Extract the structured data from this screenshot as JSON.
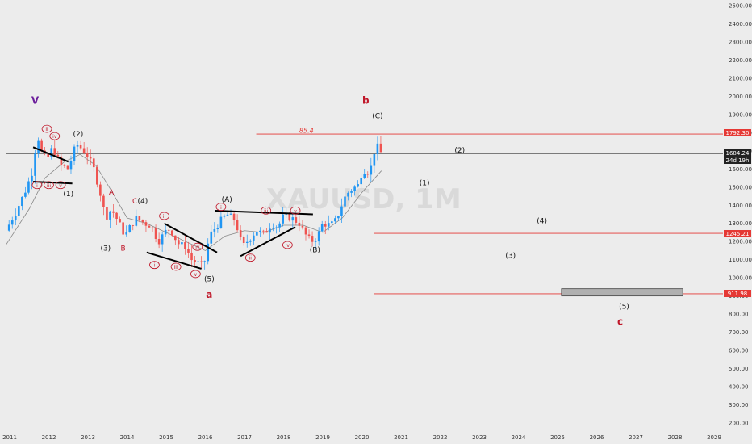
{
  "chart_data": {
    "type": "candlestick",
    "title": "",
    "watermark": "XAUUSD, 1M",
    "y_axis": {
      "ticks": [
        "2500.00",
        "2400.00",
        "2300.00",
        "2200.00",
        "2100.00",
        "2000.00",
        "1900.00",
        "1800.00",
        "1700.00",
        "1600.00",
        "1500.00",
        "1400.00",
        "1300.00",
        "1200.00",
        "1100.00",
        "1000.00",
        "900.00",
        "800.00",
        "700.00",
        "600.00",
        "500.00",
        "400.00",
        "300.00",
        "200.00"
      ],
      "ylim": [
        180,
        2520
      ]
    },
    "x_axis": {
      "ticks": [
        "2011",
        "2012",
        "2013",
        "2014",
        "2015",
        "2016",
        "2017",
        "2018",
        "2019",
        "2020",
        "2021",
        "2022",
        "2023",
        "2024",
        "2025",
        "2026",
        "2027",
        "2028",
        "2029"
      ],
      "xlim": [
        2010.9,
        2029.2
      ]
    },
    "price_labels": {
      "current_price": "1684.24",
      "countdown": "24d 19h",
      "level_1792": "1792.30",
      "level_1245": "1245.21",
      "level_911": "911.98"
    },
    "levels": [
      {
        "value": 1792.3,
        "from": 2017.3,
        "color": "#e53935"
      },
      {
        "value": 1684.24,
        "from": 2010.9,
        "color": "#555555"
      },
      {
        "value": 1245.21,
        "from": 2020.3,
        "color": "#e53935"
      },
      {
        "value": 911.98,
        "from": 2020.3,
        "color": "#e53935"
      }
    ],
    "fib_label": "85.4",
    "target_zone": {
      "x": [
        2025.1,
        2028.2
      ],
      "y": [
        900,
        940
      ],
      "fill": "#b0b0b0"
    },
    "colors": {
      "up": "#2196f3",
      "down": "#ef5350",
      "ma": "#888888",
      "wave_red": "#c0182a",
      "wave_purple": "#6a1b9a"
    },
    "price_path": [
      [
        2010.9,
        1260
      ],
      [
        2011.15,
        1360
      ],
      [
        2011.4,
        1480
      ],
      [
        2011.6,
        1600
      ],
      [
        2011.7,
        1800
      ],
      [
        2011.8,
        1700
      ],
      [
        2011.95,
        1650
      ],
      [
        2012.1,
        1720
      ],
      [
        2012.3,
        1620
      ],
      [
        2012.5,
        1600
      ],
      [
        2012.7,
        1740
      ],
      [
        2012.85,
        1710
      ],
      [
        2013.0,
        1670
      ],
      [
        2013.15,
        1600
      ],
      [
        2013.3,
        1480
      ],
      [
        2013.45,
        1330
      ],
      [
        2013.6,
        1380
      ],
      [
        2013.75,
        1320
      ],
      [
        2013.95,
        1230
      ],
      [
        2014.1,
        1290
      ],
      [
        2014.25,
        1330
      ],
      [
        2014.45,
        1300
      ],
      [
        2014.6,
        1290
      ],
      [
        2014.8,
        1200
      ],
      [
        2015.0,
        1260
      ],
      [
        2015.1,
        1270
      ],
      [
        2015.3,
        1190
      ],
      [
        2015.5,
        1170
      ],
      [
        2015.65,
        1100
      ],
      [
        2015.9,
        1070
      ],
      [
        2016.0,
        1100
      ],
      [
        2016.1,
        1230
      ],
      [
        2016.3,
        1290
      ],
      [
        2016.45,
        1330
      ],
      [
        2016.55,
        1350
      ],
      [
        2016.75,
        1320
      ],
      [
        2016.85,
        1250
      ],
      [
        2016.95,
        1170
      ],
      [
        2017.1,
        1210
      ],
      [
        2017.3,
        1260
      ],
      [
        2017.5,
        1240
      ],
      [
        2017.7,
        1300
      ],
      [
        2017.85,
        1280
      ],
      [
        2018.0,
        1340
      ],
      [
        2018.2,
        1330
      ],
      [
        2018.4,
        1300
      ],
      [
        2018.55,
        1240
      ],
      [
        2018.7,
        1200
      ],
      [
        2018.85,
        1220
      ],
      [
        2019.0,
        1300
      ],
      [
        2019.2,
        1290
      ],
      [
        2019.35,
        1320
      ],
      [
        2019.5,
        1410
      ],
      [
        2019.6,
        1460
      ],
      [
        2019.75,
        1490
      ],
      [
        2019.9,
        1510
      ],
      [
        2020.0,
        1580
      ],
      [
        2020.1,
        1600
      ],
      [
        2020.2,
        1570
      ],
      [
        2020.3,
        1690
      ],
      [
        2020.4,
        1720
      ],
      [
        2020.5,
        1684
      ]
    ],
    "moving_average": [
      [
        2010.9,
        1180
      ],
      [
        2011.5,
        1380
      ],
      [
        2011.9,
        1550
      ],
      [
        2012.4,
        1640
      ],
      [
        2012.8,
        1680
      ],
      [
        2013.2,
        1620
      ],
      [
        2013.6,
        1480
      ],
      [
        2014.0,
        1330
      ],
      [
        2014.5,
        1300
      ],
      [
        2015.0,
        1250
      ],
      [
        2015.5,
        1200
      ],
      [
        2016.0,
        1150
      ],
      [
        2016.5,
        1230
      ],
      [
        2017.0,
        1260
      ],
      [
        2017.5,
        1250
      ],
      [
        2018.0,
        1290
      ],
      [
        2018.5,
        1290
      ],
      [
        2019.0,
        1250
      ],
      [
        2019.5,
        1330
      ],
      [
        2020.0,
        1470
      ],
      [
        2020.5,
        1590
      ]
    ],
    "trend_lines": [
      [
        [
          2011.6,
          1720
        ],
        [
          2012.5,
          1640
        ]
      ],
      [
        [
          2011.6,
          1530
        ],
        [
          2012.6,
          1520
        ]
      ],
      [
        [
          2014.5,
          1140
        ],
        [
          2015.9,
          1050
        ]
      ],
      [
        [
          2014.95,
          1300
        ],
        [
          2016.3,
          1140
        ]
      ],
      [
        [
          2016.25,
          1370
        ],
        [
          2018.75,
          1350
        ]
      ],
      [
        [
          2016.9,
          1120
        ],
        [
          2018.3,
          1280
        ]
      ]
    ],
    "wave_labels": [
      {
        "text": "V",
        "x": 2011.65,
        "y": 1960,
        "color": "purple",
        "size": 12
      },
      {
        "text": "(2)",
        "x": 2012.75,
        "y": 1780,
        "color": "black"
      },
      {
        "text": "(1)",
        "x": 2012.5,
        "y": 1450,
        "color": "black"
      },
      {
        "text": "(4)",
        "x": 2014.4,
        "y": 1410,
        "color": "black"
      },
      {
        "text": "(3)",
        "x": 2013.45,
        "y": 1150,
        "color": "black"
      },
      {
        "text": "A",
        "x": 2013.6,
        "y": 1460,
        "color": "red"
      },
      {
        "text": "B",
        "x": 2013.9,
        "y": 1150,
        "color": "red"
      },
      {
        "text": "C",
        "x": 2014.2,
        "y": 1410,
        "color": "red"
      },
      {
        "text": "(A)",
        "x": 2016.55,
        "y": 1420,
        "color": "black"
      },
      {
        "text": "(5)",
        "x": 2016.1,
        "y": 980,
        "color": "black"
      },
      {
        "text": "a",
        "x": 2016.1,
        "y": 890,
        "color": "red",
        "size": 12
      },
      {
        "text": "(B)",
        "x": 2018.8,
        "y": 1140,
        "color": "black"
      },
      {
        "text": "b",
        "x": 2020.1,
        "y": 1960,
        "color": "red",
        "size": 12
      },
      {
        "text": "(C)",
        "x": 2020.4,
        "y": 1880,
        "color": "black"
      },
      {
        "text": "(2)",
        "x": 2022.5,
        "y": 1690,
        "color": "black"
      },
      {
        "text": "(1)",
        "x": 2021.6,
        "y": 1510,
        "color": "black"
      },
      {
        "text": "(4)",
        "x": 2024.6,
        "y": 1300,
        "color": "black"
      },
      {
        "text": "(3)",
        "x": 2023.8,
        "y": 1110,
        "color": "black"
      },
      {
        "text": "(5)",
        "x": 2026.7,
        "y": 830,
        "color": "black"
      },
      {
        "text": "c",
        "x": 2026.6,
        "y": 740,
        "color": "red",
        "size": 12
      }
    ],
    "circle_labels": [
      {
        "text": "ii",
        "x": 2011.95,
        "y": 1810
      },
      {
        "text": "iv",
        "x": 2012.15,
        "y": 1770
      },
      {
        "text": "i",
        "x": 2011.7,
        "y": 1500
      },
      {
        "text": "iii",
        "x": 2012.0,
        "y": 1500
      },
      {
        "text": "v",
        "x": 2012.3,
        "y": 1500
      },
      {
        "text": "ii",
        "x": 2014.95,
        "y": 1330
      },
      {
        "text": "iv",
        "x": 2015.8,
        "y": 1160
      },
      {
        "text": "i",
        "x": 2014.7,
        "y": 1060
      },
      {
        "text": "iii",
        "x": 2015.25,
        "y": 1050
      },
      {
        "text": "v",
        "x": 2015.75,
        "y": 1010
      },
      {
        "text": "i",
        "x": 2016.4,
        "y": 1380
      },
      {
        "text": "iii",
        "x": 2017.55,
        "y": 1360
      },
      {
        "text": "v",
        "x": 2018.3,
        "y": 1360
      },
      {
        "text": "ii",
        "x": 2017.15,
        "y": 1100
      },
      {
        "text": "iv",
        "x": 2018.1,
        "y": 1170
      }
    ]
  }
}
